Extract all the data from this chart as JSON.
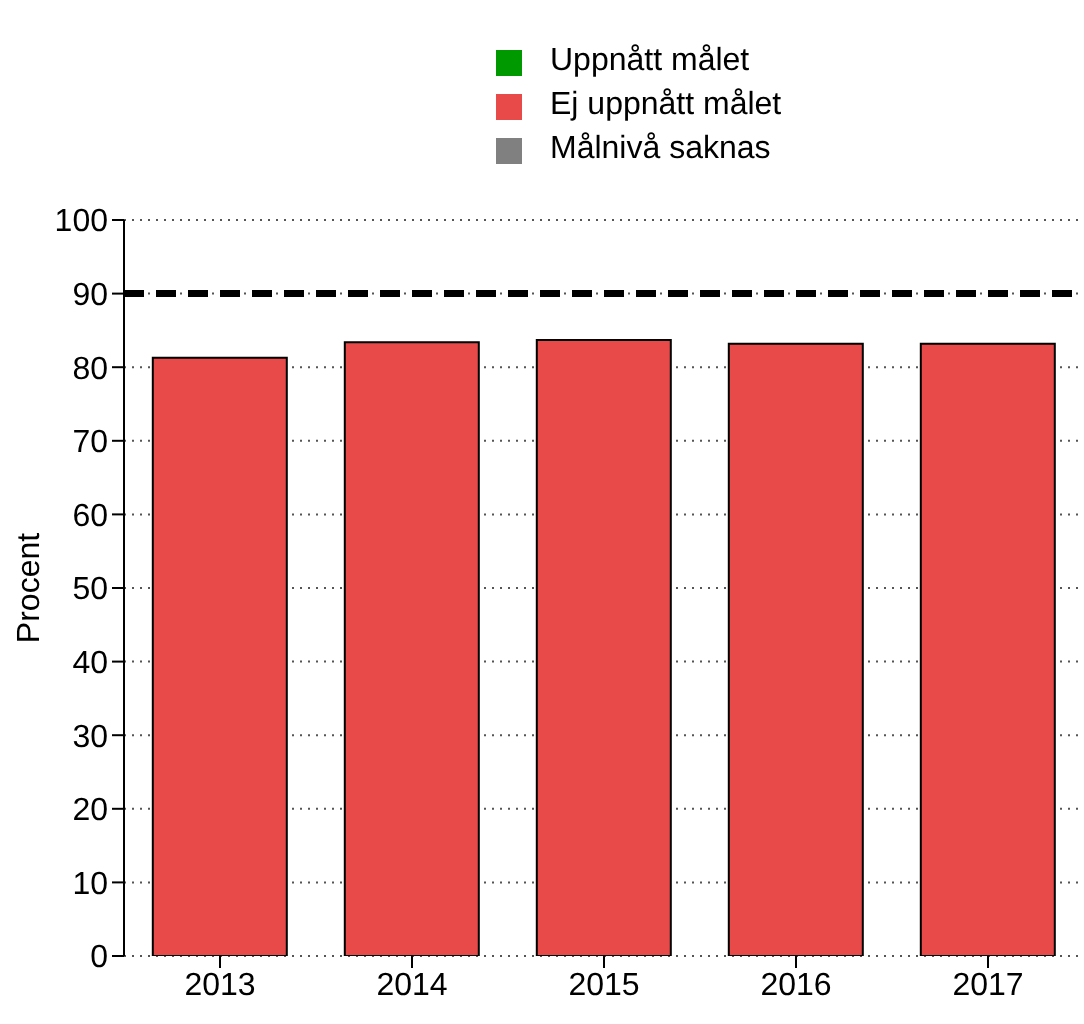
{
  "chart_data": {
    "type": "bar",
    "ylabel": "Procent",
    "categories": [
      "2013",
      "2014",
      "2015",
      "2016",
      "2017"
    ],
    "series": [
      {
        "name": "Uppnått målet",
        "color": "#009900",
        "values": [
          null,
          null,
          null,
          null,
          null
        ]
      },
      {
        "name": "Ej uppnått målet",
        "color": "#e84a4a",
        "values": [
          81.3,
          83.4,
          83.7,
          83.2,
          83.2
        ]
      },
      {
        "name": "Målnivå saknas",
        "color": "#808080",
        "values": [
          null,
          null,
          null,
          null,
          null
        ]
      }
    ],
    "ylim": [
      0,
      100
    ],
    "yticks": [
      0,
      10,
      20,
      30,
      40,
      50,
      60,
      70,
      80,
      90,
      100
    ],
    "grid": "y",
    "legend": "top",
    "ref_lines": [
      {
        "axis": "y",
        "value": 90,
        "color": "#000000",
        "line_style": "dashed"
      }
    ]
  }
}
